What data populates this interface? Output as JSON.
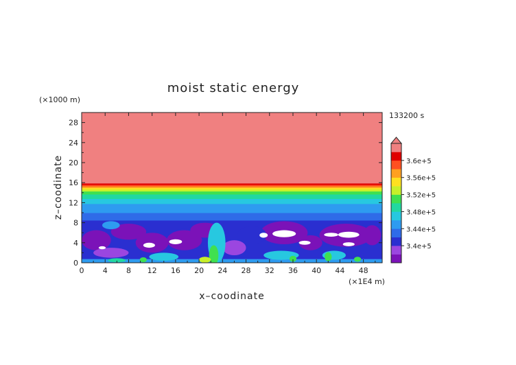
{
  "chart_data": {
    "type": "heatmap",
    "title": "moist static energy",
    "xlabel": "x–coodinate",
    "ylabel": "z–coodinate",
    "x_unit": "(×1E4 m)",
    "y_unit": "(×1000 m)",
    "time_label": "133200 s",
    "xlim": [
      0,
      51.2
    ],
    "ylim": [
      0,
      30
    ],
    "x_ticks": [
      0,
      4,
      8,
      12,
      16,
      20,
      24,
      28,
      32,
      36,
      40,
      44,
      48
    ],
    "y_ticks": [
      0,
      4,
      8,
      12,
      16,
      20,
      24,
      28
    ],
    "colorbar": {
      "levels": [
        338000,
        340000,
        342000,
        344000,
        346000,
        348000,
        350000,
        352000,
        354000,
        356000,
        358000,
        360000,
        362000
      ],
      "colors": [
        "#7b12b8",
        "#9b46e0",
        "#2a2fd0",
        "#2f6be8",
        "#2e9bf0",
        "#27c8e0",
        "#22d8a0",
        "#40e050",
        "#c8f02a",
        "#ffe020",
        "#ffa020",
        "#ff5020",
        "#e00000",
        "#f08080"
      ],
      "labels": [
        {
          "value": 360000,
          "text": "3.6e+5"
        },
        {
          "value": 356000,
          "text": "3.56e+5"
        },
        {
          "value": 352000,
          "text": "3.52e+5"
        },
        {
          "value": 348000,
          "text": "3.48e+5"
        },
        {
          "value": 344000,
          "text": "3.44e+5"
        },
        {
          "value": 340000,
          "text": "3.4e+5"
        }
      ]
    },
    "profile": [
      {
        "z": 0,
        "level": 4
      },
      {
        "z": 0.8,
        "level": 2
      },
      {
        "z": 8.5,
        "level": 3
      },
      {
        "z": 10.0,
        "level": 4
      },
      {
        "z": 11.8,
        "level": 5
      },
      {
        "z": 12.8,
        "level": 6
      },
      {
        "z": 13.7,
        "level": 7
      },
      {
        "z": 14.3,
        "level": 8
      },
      {
        "z": 14.7,
        "level": 9
      },
      {
        "z": 15.0,
        "level": 10
      },
      {
        "z": 15.3,
        "level": 11
      },
      {
        "z": 15.6,
        "level": 12
      },
      {
        "z": 15.9,
        "level": 13
      }
    ],
    "blobs": [
      {
        "x": 2.5,
        "z": 4.5,
        "rx": 2.5,
        "rz": 2.0,
        "level": 0
      },
      {
        "x": 8.0,
        "z": 6.2,
        "rx": 3.0,
        "rz": 1.6,
        "level": 0
      },
      {
        "x": 12.0,
        "z": 4.0,
        "rx": 2.8,
        "rz": 2.0,
        "level": 0
      },
      {
        "x": 17.5,
        "z": 4.5,
        "rx": 3.0,
        "rz": 2.0,
        "level": 0
      },
      {
        "x": 21.0,
        "z": 6.5,
        "rx": 2.5,
        "rz": 1.5,
        "level": 0
      },
      {
        "x": 34.5,
        "z": 6.0,
        "rx": 4.0,
        "rz": 2.3,
        "level": 0
      },
      {
        "x": 39.0,
        "z": 4.0,
        "rx": 2.0,
        "rz": 1.5,
        "level": 0
      },
      {
        "x": 45.0,
        "z": 5.5,
        "rx": 4.5,
        "rz": 2.3,
        "level": 0
      },
      {
        "x": 49.5,
        "z": 5.5,
        "rx": 1.5,
        "rz": 2.0,
        "level": 0
      },
      {
        "x": 5.0,
        "z": 2.0,
        "rx": 3.0,
        "rz": 1.0,
        "level": 1
      },
      {
        "x": 29.0,
        "z": 5.5,
        "rx": 2.5,
        "rz": 1.8,
        "level": 2
      },
      {
        "x": 26.0,
        "z": 3.0,
        "rx": 2.0,
        "rz": 1.5,
        "level": 1
      },
      {
        "x": 11.5,
        "z": 3.5,
        "rx": 1.0,
        "rz": 0.5,
        "level": "white"
      },
      {
        "x": 16.0,
        "z": 4.2,
        "rx": 1.1,
        "rz": 0.5,
        "level": "white"
      },
      {
        "x": 3.5,
        "z": 3.0,
        "rx": 0.6,
        "rz": 0.3,
        "level": "white"
      },
      {
        "x": 31.0,
        "z": 5.5,
        "rx": 0.7,
        "rz": 0.5,
        "level": "white"
      },
      {
        "x": 34.5,
        "z": 5.8,
        "rx": 2.0,
        "rz": 0.7,
        "level": "white"
      },
      {
        "x": 38.0,
        "z": 4.0,
        "rx": 1.0,
        "rz": 0.4,
        "level": "white"
      },
      {
        "x": 42.5,
        "z": 5.6,
        "rx": 1.2,
        "rz": 0.4,
        "level": "white"
      },
      {
        "x": 45.5,
        "z": 5.6,
        "rx": 1.8,
        "rz": 0.6,
        "level": "white"
      },
      {
        "x": 45.5,
        "z": 3.7,
        "rx": 1.0,
        "rz": 0.4,
        "level": "white"
      },
      {
        "x": 5.0,
        "z": 7.5,
        "rx": 1.5,
        "rz": 0.8,
        "level": 4
      },
      {
        "x": 23.0,
        "z": 4.0,
        "rx": 1.5,
        "rz": 4.0,
        "level": 5
      },
      {
        "x": 14.0,
        "z": 1.2,
        "rx": 2.5,
        "rz": 0.8,
        "level": 5
      },
      {
        "x": 34.0,
        "z": 1.5,
        "rx": 3.0,
        "rz": 0.9,
        "level": 5
      },
      {
        "x": 43.0,
        "z": 1.5,
        "rx": 2.0,
        "rz": 0.9,
        "level": 5
      },
      {
        "x": 22.5,
        "z": 1.5,
        "rx": 0.8,
        "rz": 2.0,
        "level": 7
      },
      {
        "x": 21.0,
        "z": 0.6,
        "rx": 1.0,
        "rz": 0.6,
        "level": 8
      },
      {
        "x": 42.0,
        "z": 1.2,
        "rx": 0.6,
        "rz": 0.9,
        "level": 7
      },
      {
        "x": 36.0,
        "z": 0.8,
        "rx": 0.6,
        "rz": 0.6,
        "level": 7
      },
      {
        "x": 10.5,
        "z": 0.6,
        "rx": 0.6,
        "rz": 0.5,
        "level": 7
      },
      {
        "x": 47.0,
        "z": 0.7,
        "rx": 0.6,
        "rz": 0.5,
        "level": 7
      },
      {
        "x": 6.0,
        "z": 0.5,
        "rx": 1.5,
        "rz": 0.4,
        "level": 6
      }
    ]
  }
}
